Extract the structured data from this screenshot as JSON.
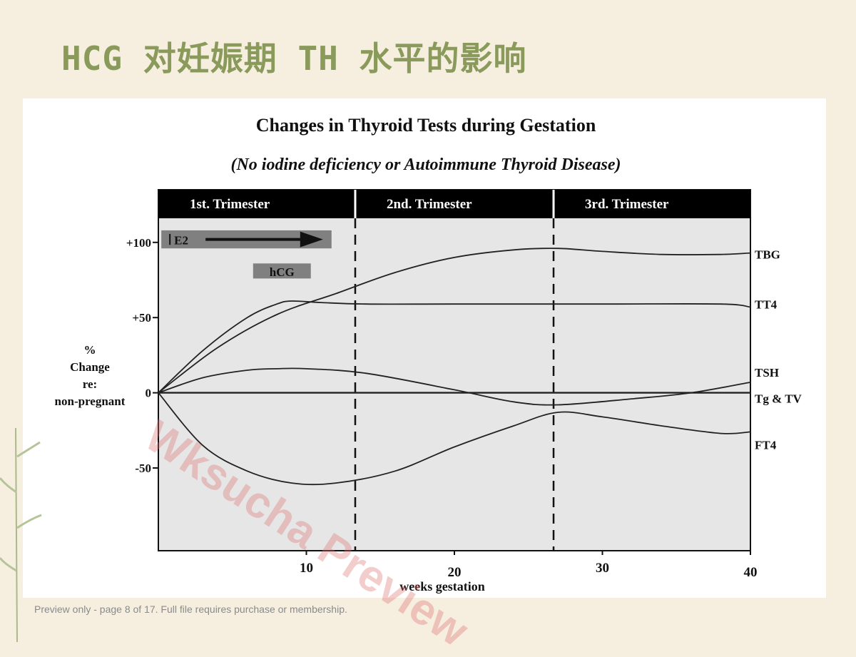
{
  "slide": {
    "title": "HCG 对妊娠期 TH 水平的影响",
    "footer": "Preview only - page 8 of 17. Full file requires purchase or membership.",
    "watermark": "Wksucha Preview"
  },
  "colors": {
    "title": "#8a9a5b",
    "plot_bg": "#e6e6e6",
    "trimester_bar": "#000000",
    "hormone_box": "#808080",
    "line": "#222222"
  },
  "chart_data": {
    "type": "line",
    "title": "Changes in Thyroid Tests during Gestation",
    "subtitle": "(No iodine deficiency or Autoimmune Thyroid Disease)",
    "xlabel": "weeks gestation",
    "ylabel": [
      "%",
      "Change",
      "re:",
      "non-pregnant"
    ],
    "xlim": [
      0,
      40
    ],
    "ylim": [
      -105,
      135
    ],
    "x_ticks": [
      10,
      20,
      30,
      40
    ],
    "y_ticks": [
      {
        "value": 100,
        "label": "+100"
      },
      {
        "value": 50,
        "label": "+50"
      },
      {
        "value": 0,
        "label": "0"
      },
      {
        "value": -50,
        "label": "-50"
      }
    ],
    "trimesters": [
      {
        "label": "1st. Trimester",
        "start": 0,
        "end": 13.3
      },
      {
        "label": "2nd. Trimester",
        "start": 13.3,
        "end": 26.7
      },
      {
        "label": "3rd. Trimester",
        "start": 26.7,
        "end": 40
      }
    ],
    "hormones": [
      {
        "label": "E2",
        "start": 0.2,
        "end": 11.7,
        "y_from": 108,
        "y_to": 96,
        "arrow": true
      },
      {
        "label": "hCG",
        "start": 6.4,
        "end": 10.3,
        "y_from": 86,
        "y_to": 76,
        "arrow": false
      }
    ],
    "series": [
      {
        "name": "TBG",
        "x": [
          0,
          4,
          8,
          12,
          16,
          20,
          24,
          27,
          30,
          34,
          38,
          40
        ],
        "y": [
          0,
          30,
          52,
          66,
          80,
          90,
          95,
          96,
          94,
          92,
          92,
          93
        ]
      },
      {
        "name": "TT4",
        "x": [
          0,
          3,
          6,
          8,
          9,
          11,
          14,
          20,
          30,
          38,
          40
        ],
        "y": [
          0,
          28,
          50,
          59,
          61,
          60,
          59,
          59,
          59,
          59,
          57
        ]
      },
      {
        "name": "TSH",
        "x": [
          0,
          3,
          6,
          8,
          10,
          14,
          20,
          24,
          27,
          32,
          36,
          40
        ],
        "y": [
          0,
          10,
          15,
          16,
          16,
          13,
          2,
          -6,
          -8,
          -4,
          0,
          7
        ]
      },
      {
        "name": "Tg & TV",
        "x": [
          0,
          40
        ],
        "y": [
          0,
          0
        ]
      },
      {
        "name": "FT4",
        "x": [
          0,
          3,
          6,
          9,
          12,
          16,
          20,
          24,
          27,
          30,
          34,
          38,
          40
        ],
        "y": [
          0,
          -35,
          -52,
          -60,
          -60,
          -52,
          -36,
          -22,
          -13,
          -16,
          -22,
          -27,
          -26
        ]
      }
    ]
  }
}
